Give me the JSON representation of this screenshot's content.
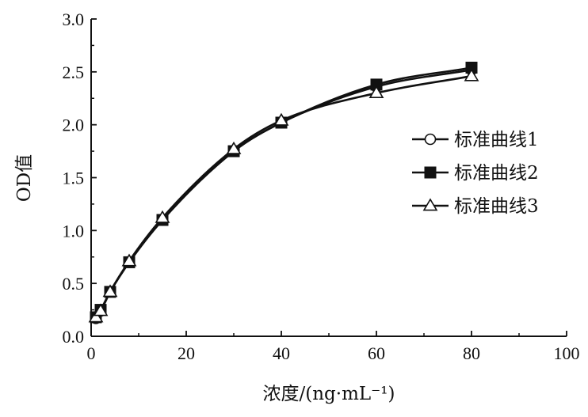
{
  "chart_data": {
    "type": "line",
    "xlabel": "浓度/(ng·mL⁻¹)",
    "ylabel": "OD值",
    "xlim": [
      0,
      100
    ],
    "ylim": [
      0,
      3.0
    ],
    "x_ticks": [
      "0",
      "20",
      "40",
      "60",
      "80",
      "100"
    ],
    "y_ticks": [
      "0.0",
      "0.5",
      "1.0",
      "1.5",
      "2.0",
      "2.5",
      "3.0"
    ],
    "grid": false,
    "legend_position": "right",
    "x": [
      1,
      2,
      4,
      8,
      15,
      30,
      40,
      60,
      80
    ],
    "series": [
      {
        "name": "标准曲线1",
        "marker": "circle-open",
        "values": [
          0.17,
          0.24,
          0.42,
          0.7,
          1.1,
          1.75,
          2.02,
          2.36,
          2.52
        ]
      },
      {
        "name": "标准曲线2",
        "marker": "square-filled",
        "values": [
          0.18,
          0.25,
          0.42,
          0.7,
          1.1,
          1.75,
          2.02,
          2.38,
          2.54
        ]
      },
      {
        "name": "标准曲线3",
        "marker": "triangle-open",
        "values": [
          0.18,
          0.24,
          0.42,
          0.71,
          1.12,
          1.77,
          2.04,
          2.3,
          2.46
        ]
      }
    ]
  }
}
